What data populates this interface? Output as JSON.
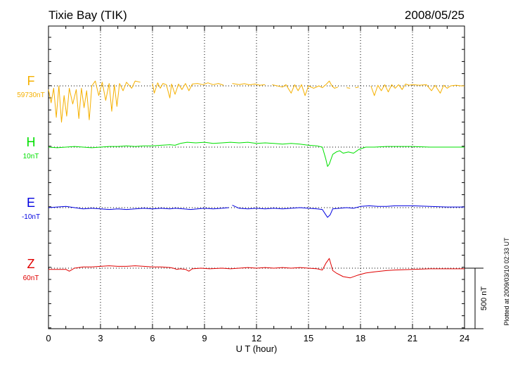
{
  "chart_data": {
    "type": "line",
    "title": "Tixie Bay (TIK)",
    "date": "2008/05/25",
    "xlabel": "U T (hour)",
    "xlim": [
      0,
      24
    ],
    "x_ticks": [
      "0",
      "3",
      "6",
      "9",
      "12",
      "15",
      "18",
      "21",
      "24"
    ],
    "scale_bar_label": "500 nT",
    "scale_bar_nT": 500,
    "side_note": "Plotted at 2009/03/10 02:33 UT",
    "grid": true,
    "series": [
      {
        "name": "F",
        "baseline": "59730nT",
        "color": "#f5b000",
        "points": [
          [
            0,
            -30
          ],
          [
            0.15,
            -140
          ],
          [
            0.3,
            -20
          ],
          [
            0.45,
            -260
          ],
          [
            0.6,
            0
          ],
          [
            0.75,
            -300
          ],
          [
            0.9,
            -80
          ],
          [
            1.05,
            -250
          ],
          [
            1.2,
            -20
          ],
          [
            1.4,
            -150
          ],
          [
            1.6,
            -30
          ],
          [
            1.75,
            -270
          ],
          [
            1.9,
            -20
          ],
          [
            2.05,
            -180
          ],
          [
            2.2,
            -40
          ],
          [
            2.35,
            -280
          ],
          [
            2.5,
            0
          ],
          [
            2.7,
            40
          ],
          [
            2.9,
            -80
          ],
          [
            3.1,
            30
          ],
          [
            3.3,
            -120
          ],
          [
            3.5,
            20
          ],
          [
            3.65,
            -210
          ],
          [
            3.8,
            10
          ],
          [
            3.95,
            -170
          ],
          [
            4.1,
            20
          ],
          [
            4.3,
            -40
          ],
          [
            4.5,
            30
          ],
          [
            4.8,
            -20
          ],
          [
            5.0,
            40
          ],
          [
            5.3,
            30
          ],
          [
            5.4,
            null
          ],
          [
            6.0,
            20
          ],
          [
            6.1,
            -60
          ],
          [
            6.3,
            25
          ],
          [
            6.45,
            -20
          ],
          [
            6.6,
            20
          ],
          [
            6.8,
            10
          ],
          [
            7.0,
            -100
          ],
          [
            7.1,
            15
          ],
          [
            7.3,
            -70
          ],
          [
            7.5,
            15
          ],
          [
            7.7,
            -30
          ],
          [
            7.9,
            20
          ],
          [
            8.1,
            -40
          ],
          [
            8.3,
            15
          ],
          [
            8.6,
            20
          ],
          [
            8.9,
            10
          ],
          [
            9.2,
            25
          ],
          [
            9.5,
            10
          ],
          [
            9.8,
            20
          ],
          [
            10.1,
            5
          ],
          [
            10.2,
            null
          ],
          [
            10.6,
            20
          ],
          [
            10.8,
            15
          ],
          [
            11.0,
            10
          ],
          [
            11.3,
            18
          ],
          [
            11.6,
            8
          ],
          [
            11.9,
            15
          ],
          [
            12.2,
            5
          ],
          [
            12.5,
            10
          ],
          [
            12.7,
            null
          ],
          [
            12.9,
            10
          ],
          [
            13.2,
            0
          ],
          [
            13.5,
            -10
          ],
          [
            13.7,
            10
          ],
          [
            14.0,
            -60
          ],
          [
            14.2,
            10
          ],
          [
            14.4,
            -40
          ],
          [
            14.6,
            10
          ],
          [
            14.8,
            -80
          ],
          [
            15.0,
            0
          ],
          [
            15.3,
            -20
          ],
          [
            15.6,
            0
          ],
          [
            15.8,
            -15
          ],
          [
            16.0,
            10
          ],
          [
            16.2,
            40
          ],
          [
            16.35,
            0
          ],
          [
            16.5,
            -20
          ],
          [
            16.7,
            -10
          ],
          [
            16.8,
            null
          ],
          [
            17.2,
            -15
          ],
          [
            17.4,
            -20
          ],
          [
            17.5,
            null
          ],
          [
            17.7,
            -15
          ],
          [
            17.9,
            -10
          ],
          [
            18.0,
            null
          ],
          [
            18.6,
            0
          ],
          [
            18.8,
            -80
          ],
          [
            19.0,
            5
          ],
          [
            19.2,
            -40
          ],
          [
            19.4,
            10
          ],
          [
            19.6,
            -50
          ],
          [
            19.8,
            10
          ],
          [
            20.0,
            -20
          ],
          [
            20.2,
            10
          ],
          [
            20.4,
            -30
          ],
          [
            20.6,
            15
          ],
          [
            20.8,
            5
          ],
          [
            21.0,
            10
          ],
          [
            21.4,
            5
          ],
          [
            21.8,
            10
          ],
          [
            22.1,
            -40
          ],
          [
            22.3,
            5
          ],
          [
            22.6,
            -60
          ],
          [
            22.8,
            5
          ],
          [
            23.0,
            -20
          ],
          [
            23.2,
            0
          ],
          [
            23.5,
            5
          ],
          [
            23.8,
            0
          ],
          [
            24.0,
            0
          ]
        ]
      },
      {
        "name": "H",
        "baseline": "10nT",
        "color": "#00e000",
        "points": [
          [
            0,
            0
          ],
          [
            0.5,
            -5
          ],
          [
            1.0,
            0
          ],
          [
            1.5,
            5
          ],
          [
            2.0,
            0
          ],
          [
            2.5,
            -5
          ],
          [
            3.0,
            0
          ],
          [
            3.5,
            5
          ],
          [
            4.0,
            5
          ],
          [
            4.5,
            10
          ],
          [
            5.0,
            5
          ],
          [
            5.5,
            10
          ],
          [
            6.0,
            10
          ],
          [
            6.5,
            15
          ],
          [
            7.0,
            20
          ],
          [
            7.3,
            15
          ],
          [
            7.6,
            30
          ],
          [
            8.0,
            40
          ],
          [
            8.5,
            35
          ],
          [
            9.0,
            40
          ],
          [
            9.5,
            30
          ],
          [
            10.0,
            35
          ],
          [
            10.5,
            40
          ],
          [
            11.0,
            35
          ],
          [
            11.5,
            40
          ],
          [
            12.0,
            30
          ],
          [
            12.5,
            35
          ],
          [
            13.0,
            30
          ],
          [
            13.5,
            25
          ],
          [
            14.0,
            30
          ],
          [
            14.5,
            25
          ],
          [
            15.0,
            15
          ],
          [
            15.5,
            10
          ],
          [
            15.8,
            0
          ],
          [
            16.0,
            -100
          ],
          [
            16.1,
            -160
          ],
          [
            16.2,
            -140
          ],
          [
            16.4,
            -60
          ],
          [
            16.6,
            -40
          ],
          [
            16.8,
            -30
          ],
          [
            17.0,
            -50
          ],
          [
            17.3,
            -40
          ],
          [
            17.6,
            -50
          ],
          [
            17.9,
            -20
          ],
          [
            18.3,
            0
          ],
          [
            18.8,
            0
          ],
          [
            19.5,
            5
          ],
          [
            20.0,
            5
          ],
          [
            21.0,
            5
          ],
          [
            22.0,
            0
          ],
          [
            23.0,
            0
          ],
          [
            24.0,
            0
          ]
        ]
      },
      {
        "name": "E",
        "baseline": "-10nT",
        "color": "#0000e0",
        "points": [
          [
            0,
            0
          ],
          [
            0.5,
            5
          ],
          [
            1.0,
            10
          ],
          [
            1.5,
            0
          ],
          [
            2.0,
            -10
          ],
          [
            2.5,
            -5
          ],
          [
            3.0,
            -10
          ],
          [
            3.5,
            -15
          ],
          [
            4.0,
            -10
          ],
          [
            4.5,
            -15
          ],
          [
            5.0,
            -10
          ],
          [
            5.5,
            -5
          ],
          [
            6.0,
            -10
          ],
          [
            6.5,
            -5
          ],
          [
            7.0,
            -10
          ],
          [
            7.3,
            -5
          ],
          [
            7.8,
            -10
          ],
          [
            8.2,
            -15
          ],
          [
            8.6,
            -10
          ],
          [
            9.0,
            -5
          ],
          [
            9.5,
            -10
          ],
          [
            10.0,
            -5
          ],
          [
            10.4,
            0
          ],
          [
            10.5,
            null
          ],
          [
            10.6,
            20
          ],
          [
            11.0,
            -5
          ],
          [
            11.5,
            -10
          ],
          [
            12.0,
            -5
          ],
          [
            12.5,
            -10
          ],
          [
            13.0,
            -5
          ],
          [
            13.5,
            -10
          ],
          [
            14.0,
            -5
          ],
          [
            14.5,
            0
          ],
          [
            15.0,
            -5
          ],
          [
            15.5,
            -10
          ],
          [
            15.8,
            -15
          ],
          [
            16.0,
            -60
          ],
          [
            16.1,
            -80
          ],
          [
            16.25,
            -60
          ],
          [
            16.4,
            -10
          ],
          [
            16.8,
            -5
          ],
          [
            17.2,
            0
          ],
          [
            17.6,
            -5
          ],
          [
            18.0,
            10
          ],
          [
            18.5,
            15
          ],
          [
            19.0,
            10
          ],
          [
            19.5,
            10
          ],
          [
            20.0,
            15
          ],
          [
            21.0,
            15
          ],
          [
            22.0,
            10
          ],
          [
            23.0,
            5
          ],
          [
            24.0,
            5
          ]
        ]
      },
      {
        "name": "Z",
        "baseline": "60nT",
        "color": "#e00000",
        "points": [
          [
            0,
            -10
          ],
          [
            0.5,
            -10
          ],
          [
            1.0,
            -10
          ],
          [
            1.2,
            -25
          ],
          [
            1.5,
            0
          ],
          [
            2.0,
            10
          ],
          [
            2.5,
            10
          ],
          [
            3.0,
            15
          ],
          [
            3.5,
            20
          ],
          [
            4.0,
            15
          ],
          [
            4.5,
            15
          ],
          [
            5.0,
            20
          ],
          [
            5.5,
            15
          ],
          [
            6.0,
            10
          ],
          [
            6.5,
            10
          ],
          [
            7.0,
            5
          ],
          [
            7.2,
            0
          ],
          [
            7.4,
            -10
          ],
          [
            7.6,
            -5
          ],
          [
            7.9,
            -10
          ],
          [
            8.1,
            -25
          ],
          [
            8.3,
            -5
          ],
          [
            8.8,
            0
          ],
          [
            9.3,
            -5
          ],
          [
            10.0,
            0
          ],
          [
            10.5,
            -5
          ],
          [
            11.0,
            0
          ],
          [
            11.5,
            5
          ],
          [
            12.0,
            0
          ],
          [
            12.5,
            5
          ],
          [
            13.0,
            0
          ],
          [
            13.5,
            5
          ],
          [
            14.0,
            0
          ],
          [
            14.5,
            5
          ],
          [
            15.0,
            0
          ],
          [
            15.5,
            -5
          ],
          [
            15.8,
            -15
          ],
          [
            16.0,
            40
          ],
          [
            16.2,
            80
          ],
          [
            16.4,
            -20
          ],
          [
            16.6,
            -40
          ],
          [
            17.0,
            -70
          ],
          [
            17.4,
            -80
          ],
          [
            17.8,
            -60
          ],
          [
            18.3,
            -40
          ],
          [
            18.8,
            -30
          ],
          [
            19.5,
            -20
          ],
          [
            20.0,
            -15
          ],
          [
            21.0,
            -10
          ],
          [
            22.0,
            -5
          ],
          [
            23.0,
            -5
          ],
          [
            24.0,
            -5
          ]
        ]
      }
    ]
  }
}
